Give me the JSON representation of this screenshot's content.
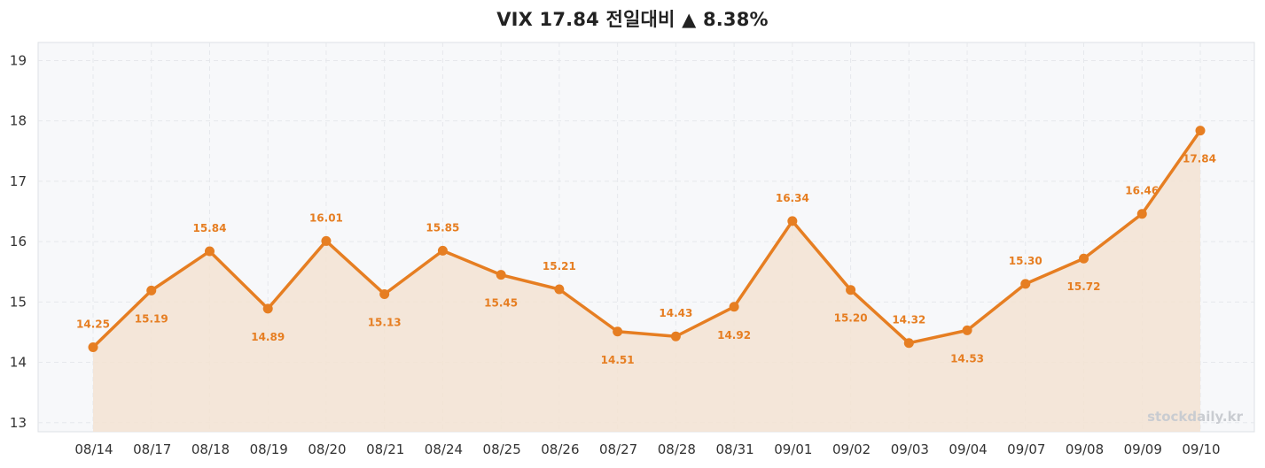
{
  "title": "VIX  17.84  전일대비 ▲ 8.38%",
  "watermark": "stockdaily.kr",
  "colors": {
    "line": "#e67e22",
    "fill": "#f3e3d2",
    "plot_bg": "#f7f8fa",
    "grid": "#e6e8ec",
    "label": "#e67e22"
  },
  "chart_data": {
    "type": "line",
    "categories": [
      "08/14",
      "08/17",
      "08/18",
      "08/19",
      "08/20",
      "08/21",
      "08/24",
      "08/25",
      "08/26",
      "08/27",
      "08/28",
      "08/31",
      "09/01",
      "09/02",
      "09/03",
      "09/04",
      "09/07",
      "09/08",
      "09/09",
      "09/10"
    ],
    "series": [
      {
        "values": [
          14.25,
          15.19,
          15.84,
          14.89,
          16.01,
          15.13,
          15.85,
          15.45,
          15.21,
          14.51,
          14.43,
          14.92,
          16.34,
          15.2,
          14.32,
          14.53,
          15.3,
          15.72,
          16.46,
          17.84
        ],
        "labels": [
          "14.25",
          "15.19",
          "15.84",
          "14.89",
          "16.01",
          "15.13",
          "15.85",
          "15.45",
          "15.21",
          "14.51",
          "14.43",
          "14.92",
          "16.34",
          "15.20",
          "14.32",
          "14.53",
          "15.30",
          "15.72",
          "16.46",
          "17.84"
        ]
      }
    ],
    "ylim": [
      12.85,
      19.3
    ],
    "yticks": [
      "13",
      "14",
      "15",
      "16",
      "17",
      "18",
      "19"
    ],
    "grid": true,
    "area_fill": true,
    "legend": "none"
  }
}
